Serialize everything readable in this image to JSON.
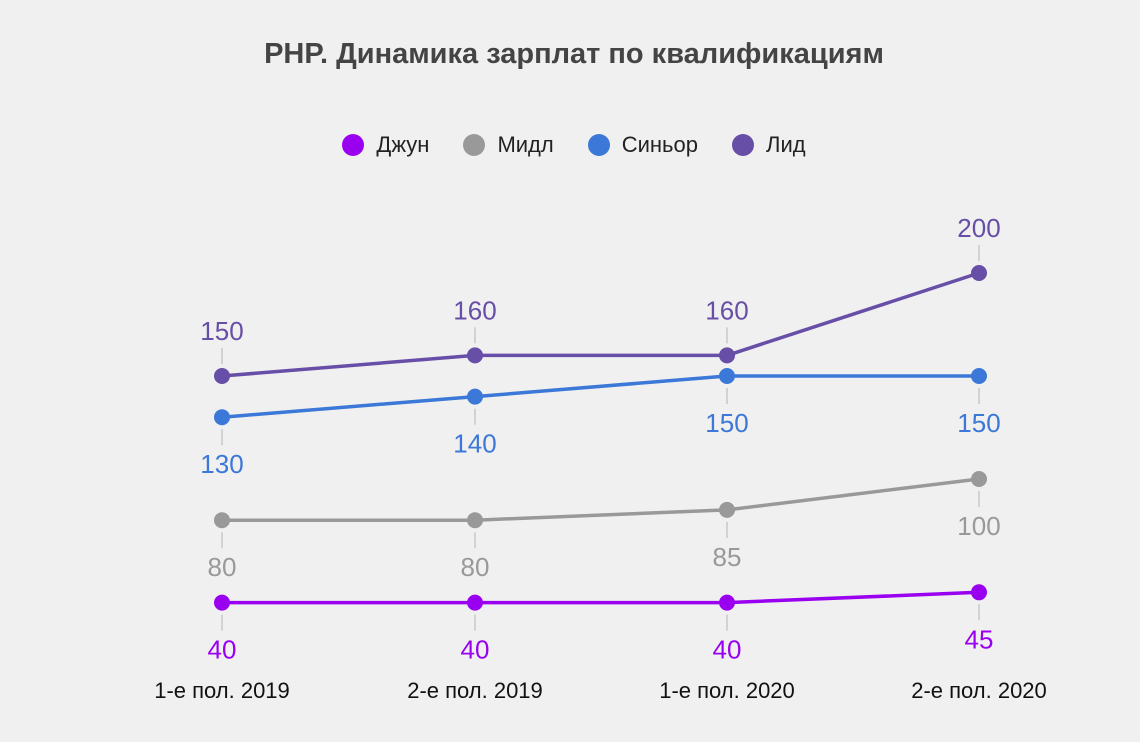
{
  "chart_data": {
    "type": "line",
    "title": "PHP. Динамика зарплат по квалификациям",
    "categories": [
      "1-е пол. 2019",
      "2-е пол. 2019",
      "1-е пол. 2020",
      "2-е пол. 2020"
    ],
    "series": [
      {
        "name": "Джун",
        "color": "#9a00f0",
        "values": [
          40,
          40,
          40,
          45
        ],
        "label_position": "below"
      },
      {
        "name": "Мидл",
        "color": "#999999",
        "values": [
          80,
          80,
          85,
          100
        ],
        "label_position": "below"
      },
      {
        "name": "Синьор",
        "color": "#3c78d8",
        "values": [
          130,
          140,
          150,
          150
        ],
        "label_position": "below"
      },
      {
        "name": "Лид",
        "color": "#674ea7",
        "values": [
          150,
          160,
          160,
          200
        ],
        "label_position": "above"
      }
    ],
    "legend_position": "top",
    "grid": false,
    "xlabel": "",
    "ylabel": ""
  }
}
